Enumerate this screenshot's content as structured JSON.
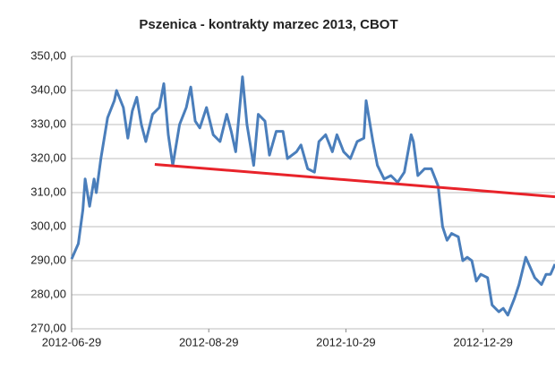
{
  "chart_data": {
    "type": "line",
    "title": "Pszenica - kontrakty marzec 2013, CBOT",
    "x": [
      "2012-06-29",
      "2012-07-02",
      "2012-07-04",
      "2012-07-05",
      "2012-07-07",
      "2012-07-09",
      "2012-07-10",
      "2012-07-12",
      "2012-07-15",
      "2012-07-18",
      "2012-07-19",
      "2012-07-22",
      "2012-07-24",
      "2012-07-26",
      "2012-07-28",
      "2012-07-30",
      "2012-08-01",
      "2012-08-04",
      "2012-08-07",
      "2012-08-09",
      "2012-08-11",
      "2012-08-13",
      "2012-08-16",
      "2012-08-19",
      "2012-08-21",
      "2012-08-23",
      "2012-08-25",
      "2012-08-28",
      "2012-08-31",
      "2012-09-03",
      "2012-09-06",
      "2012-09-08",
      "2012-09-10",
      "2012-09-13",
      "2012-09-15",
      "2012-09-18",
      "2012-09-20",
      "2012-09-23",
      "2012-09-25",
      "2012-09-28",
      "2012-10-01",
      "2012-10-03",
      "2012-10-07",
      "2012-10-09",
      "2012-10-12",
      "2012-10-15",
      "2012-10-17",
      "2012-10-20",
      "2012-10-23",
      "2012-10-25",
      "2012-10-28",
      "2012-10-31",
      "2012-11-03",
      "2012-11-06",
      "2012-11-07",
      "2012-11-10",
      "2012-11-12",
      "2012-11-15",
      "2012-11-18",
      "2012-11-21",
      "2012-11-24",
      "2012-11-27",
      "2012-11-28",
      "2012-11-30",
      "2012-12-03",
      "2012-12-06",
      "2012-12-09",
      "2012-12-11",
      "2012-12-13",
      "2012-12-15",
      "2012-12-18",
      "2012-12-20",
      "2012-12-22",
      "2012-12-24",
      "2012-12-26",
      "2012-12-28",
      "2012-12-31",
      "2013-01-02",
      "2013-01-05",
      "2013-01-07",
      "2013-01-09",
      "2013-01-12",
      "2013-01-14",
      "2013-01-17",
      "2013-01-19",
      "2013-01-21",
      "2013-01-24",
      "2013-01-26",
      "2013-01-28",
      "2013-01-30"
    ],
    "series": [
      {
        "color": "#4a7ebb",
        "values": [
          290.5,
          295,
          305,
          314,
          306,
          314,
          310,
          320,
          332,
          337,
          340,
          335,
          326,
          334,
          338,
          330,
          325,
          333,
          335,
          342,
          327,
          318,
          330,
          335,
          341,
          331,
          329,
          335,
          327,
          325,
          333,
          328,
          322,
          344,
          330,
          318,
          333,
          331,
          321,
          328,
          328,
          320,
          322,
          324,
          317,
          316,
          325,
          327,
          322,
          327,
          322,
          320,
          325,
          326,
          337,
          325,
          318,
          314,
          315,
          313,
          316,
          327,
          325,
          315,
          317,
          317,
          312,
          300,
          296,
          298,
          297,
          290,
          291,
          290,
          284,
          286,
          285,
          277,
          275,
          276,
          274,
          279,
          283,
          291,
          288,
          285,
          283,
          286,
          286,
          289
        ]
      }
    ],
    "trend_line": {
      "color": "#e8232a",
      "x": [
        "2012-08-05",
        "2013-01-30"
      ],
      "values": [
        318.3,
        308.8
      ]
    },
    "xlim": [
      "2012-06-29",
      "2013-01-30"
    ],
    "xticks": [
      "2012-06-29",
      "2012-08-29",
      "2012-10-29",
      "2012-12-29"
    ],
    "ylim": [
      270,
      350
    ],
    "yticks": [
      {
        "value": 270,
        "label": "270,00"
      },
      {
        "value": 280,
        "label": "280,00"
      },
      {
        "value": 290,
        "label": "290,00"
      },
      {
        "value": 300,
        "label": "300,00"
      },
      {
        "value": 310,
        "label": "310,00"
      },
      {
        "value": 320,
        "label": "320,00"
      },
      {
        "value": 330,
        "label": "330,00"
      },
      {
        "value": 340,
        "label": "340,00"
      },
      {
        "value": 350,
        "label": "350,00"
      }
    ],
    "grid": true
  }
}
